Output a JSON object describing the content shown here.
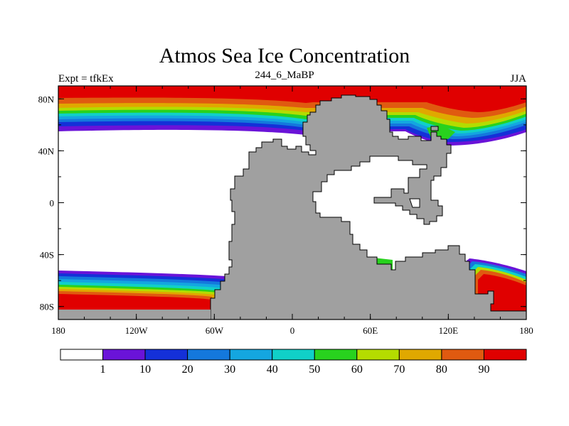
{
  "title": "Atmos Sea Ice Concentration",
  "subtitle": "244_6_MaBP",
  "left_label": "Expt = tfkEx",
  "right_label": "JJA",
  "colors": {
    "land": "#a0a0a0",
    "background": "#ffffff"
  },
  "map": {
    "lon_ticks": [
      "180",
      "120W",
      "60W",
      "0",
      "60E",
      "120E",
      "180"
    ],
    "lat_ticks": [
      "80N",
      "40N",
      "0",
      "40S",
      "80S"
    ]
  },
  "colorbar": {
    "colors": [
      "#ffffff",
      "#6a13d8",
      "#1430d8",
      "#1478dc",
      "#14a6e0",
      "#10d0c8",
      "#28d21e",
      "#b4dc00",
      "#e0a800",
      "#e05a10",
      "#e00000"
    ],
    "labels": [
      "1",
      "10",
      "20",
      "30",
      "40",
      "50",
      "60",
      "70",
      "80",
      "90"
    ]
  }
}
